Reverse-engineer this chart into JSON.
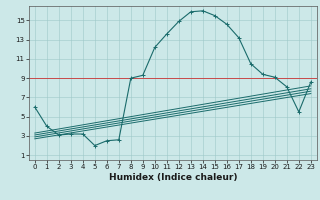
{
  "xlabel": "Humidex (Indice chaleur)",
  "bg_color": "#cce8e8",
  "line_color": "#1a6b6b",
  "xlim": [
    -0.5,
    23.5
  ],
  "ylim": [
    0.5,
    16.5
  ],
  "xticks": [
    0,
    1,
    2,
    3,
    4,
    5,
    6,
    7,
    8,
    9,
    10,
    11,
    12,
    13,
    14,
    15,
    16,
    17,
    18,
    19,
    20,
    21,
    22,
    23
  ],
  "yticks": [
    1,
    3,
    5,
    7,
    9,
    11,
    13,
    15
  ],
  "red_hline_y": 9,
  "main_curve": [
    [
      0,
      6.0
    ],
    [
      1,
      4.0
    ],
    [
      2,
      3.1
    ],
    [
      3,
      3.2
    ],
    [
      4,
      3.2
    ],
    [
      5,
      2.0
    ],
    [
      6,
      2.5
    ],
    [
      7,
      2.6
    ],
    [
      8,
      9.0
    ],
    [
      9,
      9.3
    ],
    [
      10,
      12.2
    ],
    [
      11,
      13.6
    ],
    [
      12,
      14.9
    ],
    [
      13,
      15.9
    ],
    [
      14,
      16.0
    ],
    [
      15,
      15.5
    ],
    [
      16,
      14.6
    ],
    [
      17,
      13.2
    ],
    [
      18,
      10.5
    ],
    [
      19,
      9.4
    ],
    [
      20,
      9.1
    ],
    [
      21,
      8.1
    ],
    [
      22,
      5.5
    ],
    [
      23,
      8.6
    ]
  ],
  "extra_lines": [
    [
      [
        0,
        3.3
      ],
      [
        23,
        8.2
      ]
    ],
    [
      [
        0,
        3.1
      ],
      [
        23,
        7.9
      ]
    ],
    [
      [
        0,
        2.9
      ],
      [
        23,
        7.65
      ]
    ],
    [
      [
        0,
        2.7
      ],
      [
        23,
        7.4
      ]
    ]
  ]
}
